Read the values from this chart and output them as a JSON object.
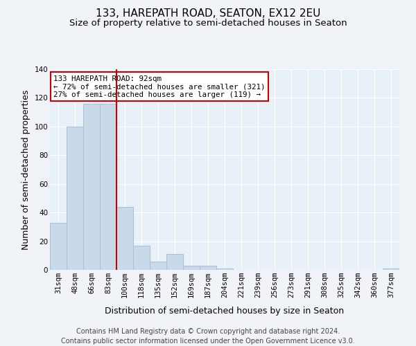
{
  "title1": "133, HAREPATH ROAD, SEATON, EX12 2EU",
  "title2": "Size of property relative to semi-detached houses in Seaton",
  "xlabel": "Distribution of semi-detached houses by size in Seaton",
  "ylabel": "Number of semi-detached properties",
  "footer1": "Contains HM Land Registry data © Crown copyright and database right 2024.",
  "footer2": "Contains public sector information licensed under the Open Government Licence v3.0.",
  "annotation_line1": "133 HAREPATH ROAD: 92sqm",
  "annotation_line2": "← 72% of semi-detached houses are smaller (321)",
  "annotation_line3": "27% of semi-detached houses are larger (119) →",
  "bar_labels": [
    "31sqm",
    "48sqm",
    "66sqm",
    "83sqm",
    "100sqm",
    "118sqm",
    "135sqm",
    "152sqm",
    "169sqm",
    "187sqm",
    "204sqm",
    "221sqm",
    "239sqm",
    "256sqm",
    "273sqm",
    "291sqm",
    "308sqm",
    "325sqm",
    "342sqm",
    "360sqm",
    "377sqm"
  ],
  "bar_values": [
    33,
    100,
    116,
    116,
    44,
    17,
    6,
    11,
    3,
    3,
    1,
    0,
    0,
    0,
    0,
    0,
    0,
    0,
    0,
    0,
    1
  ],
  "bar_color": "#c8d9ea",
  "bar_edge_color": "#a8c0d8",
  "vline_x": 3.5,
  "vline_color": "#cc0000",
  "ylim": [
    0,
    140
  ],
  "yticks": [
    0,
    20,
    40,
    60,
    80,
    100,
    120,
    140
  ],
  "bg_color": "#e8f0f8",
  "grid_color": "#ffffff",
  "fig_bg_color": "#f0f4f8",
  "annotation_box_color": "#cc0000",
  "title1_fontsize": 11,
  "title2_fontsize": 9.5,
  "xlabel_fontsize": 9,
  "ylabel_fontsize": 9,
  "tick_fontsize": 7.5,
  "annotation_fontsize": 7.8,
  "footer_fontsize": 7
}
